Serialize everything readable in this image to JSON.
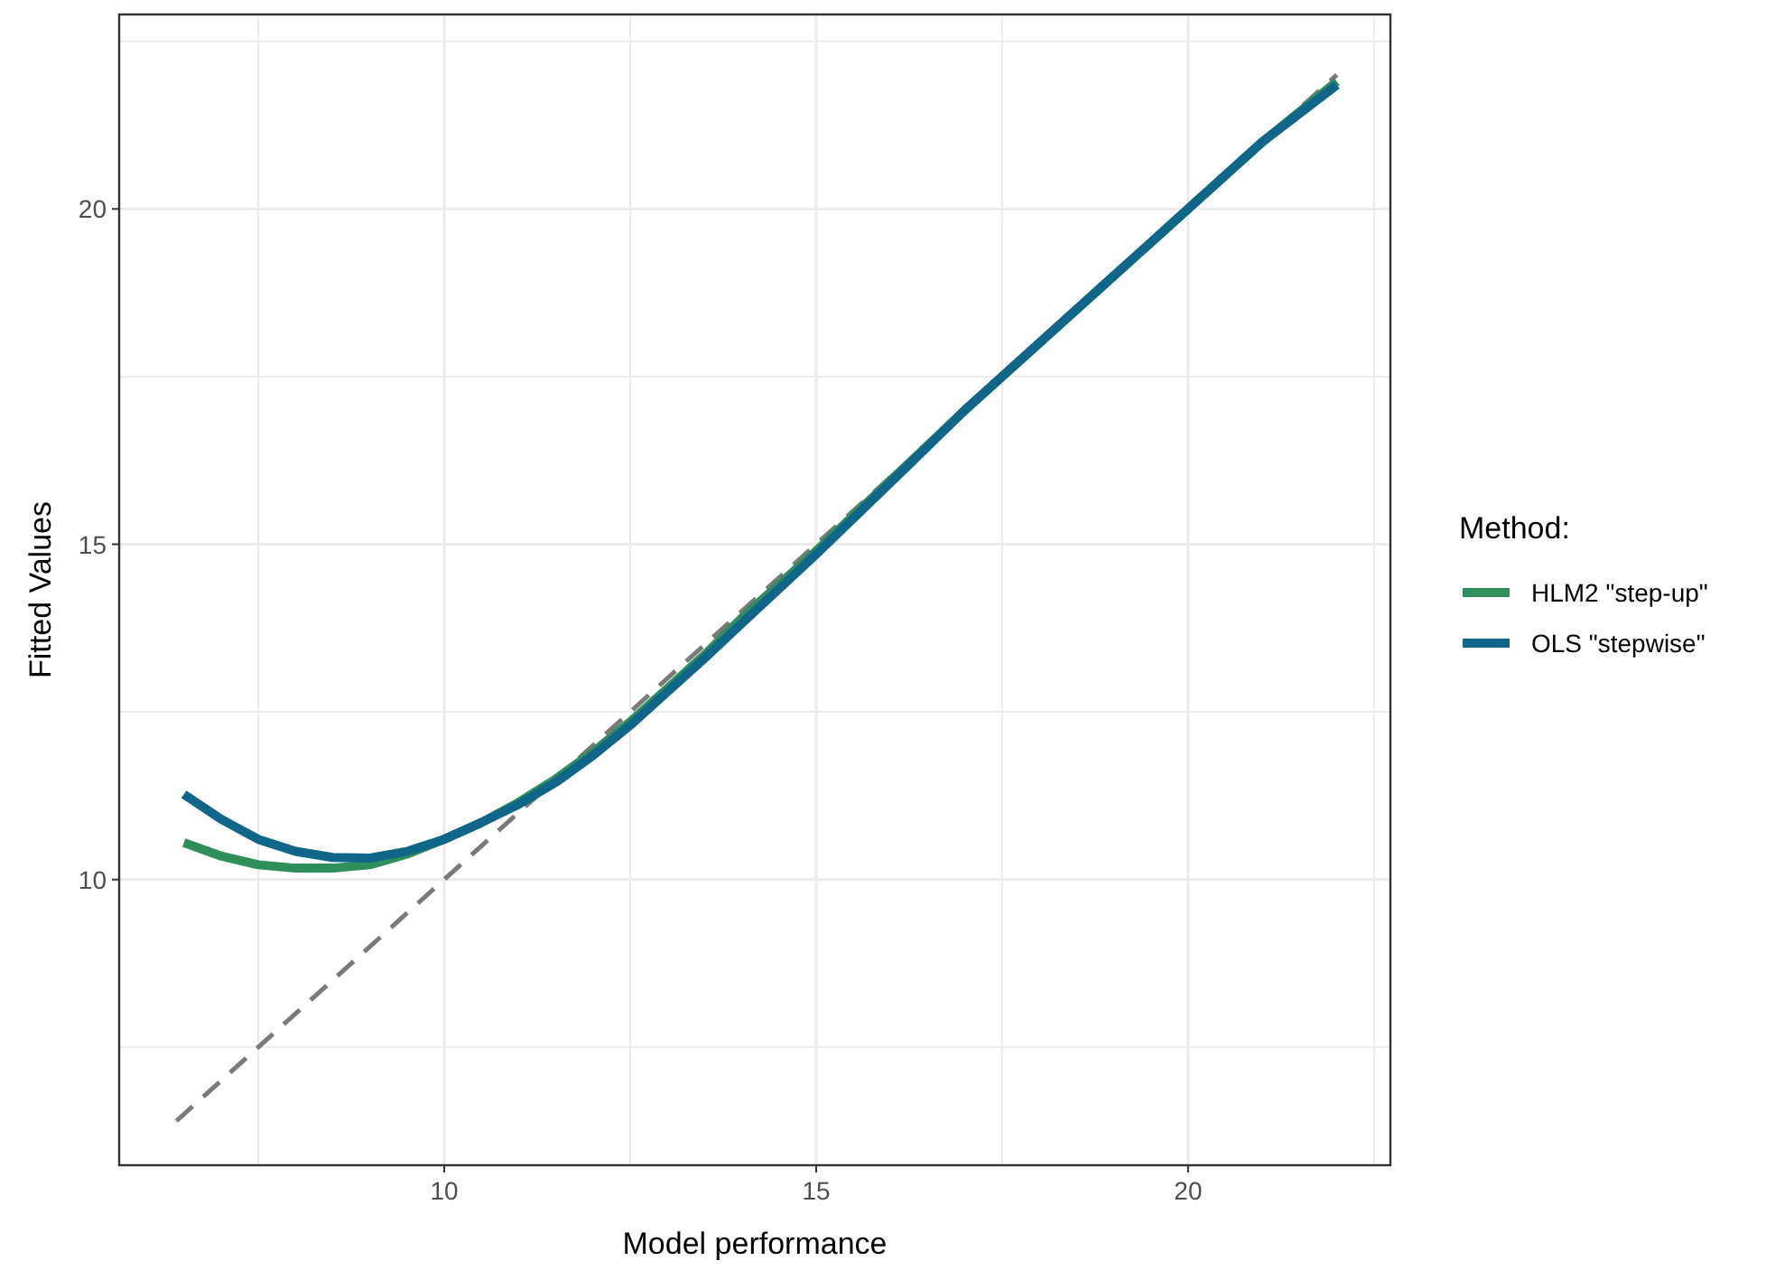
{
  "chart_data": {
    "type": "line",
    "xlabel": "Model performance",
    "ylabel": "Fitted Values",
    "legend_title": "Method:",
    "legend": "right",
    "grid": true,
    "xlim": [
      5.63,
      22.72
    ],
    "ylim": [
      5.74,
      22.9
    ],
    "xticks": [
      {
        "value": 7.5,
        "label": null
      },
      10,
      {
        "value": 12.5,
        "label": null
      },
      15,
      {
        "value": 17.5,
        "label": null
      },
      20,
      {
        "value": 22.5,
        "label": null
      }
    ],
    "yticks": [
      {
        "value": 7.5,
        "label": null
      },
      10,
      {
        "value": 12.5,
        "label": null
      },
      15,
      {
        "value": 17.5,
        "label": null
      },
      20,
      {
        "value": 22.5,
        "label": null
      }
    ],
    "series": [
      {
        "color": "#7a7a7a",
        "line_style": "dashed",
        "x": [
          6.4,
          22
        ],
        "values": [
          6.4,
          22
        ]
      },
      {
        "name": "HLM2 \"step-up\"",
        "color": "#2e8f5a",
        "line_style": "solid",
        "x": [
          6.5,
          7,
          7.5,
          8,
          8.5,
          9,
          9.5,
          10,
          10.5,
          11,
          11.5,
          12,
          12.5,
          13,
          13.5,
          14,
          15,
          16,
          17,
          18,
          19,
          20,
          21,
          22
        ],
        "values": [
          10.55,
          10.35,
          10.22,
          10.17,
          10.17,
          10.22,
          10.38,
          10.6,
          10.85,
          11.15,
          11.5,
          11.9,
          12.35,
          12.85,
          13.35,
          13.9,
          14.9,
          15.95,
          17.0,
          18.0,
          19.0,
          20.0,
          21.0,
          21.9
        ]
      },
      {
        "name": "OLS \"stepwise\"",
        "color": "#0f6688",
        "line_style": "solid",
        "x": [
          6.5,
          7,
          7.5,
          8,
          8.5,
          9,
          9.5,
          10,
          10.5,
          11,
          11.5,
          12,
          12.5,
          13,
          13.5,
          14,
          15,
          16,
          17,
          18,
          19,
          20,
          21,
          22
        ],
        "values": [
          11.27,
          10.9,
          10.6,
          10.42,
          10.33,
          10.32,
          10.42,
          10.6,
          10.85,
          11.12,
          11.45,
          11.85,
          12.3,
          12.8,
          13.3,
          13.82,
          14.85,
          15.92,
          17.0,
          18.0,
          19.0,
          20.0,
          21.0,
          21.85
        ]
      }
    ]
  }
}
